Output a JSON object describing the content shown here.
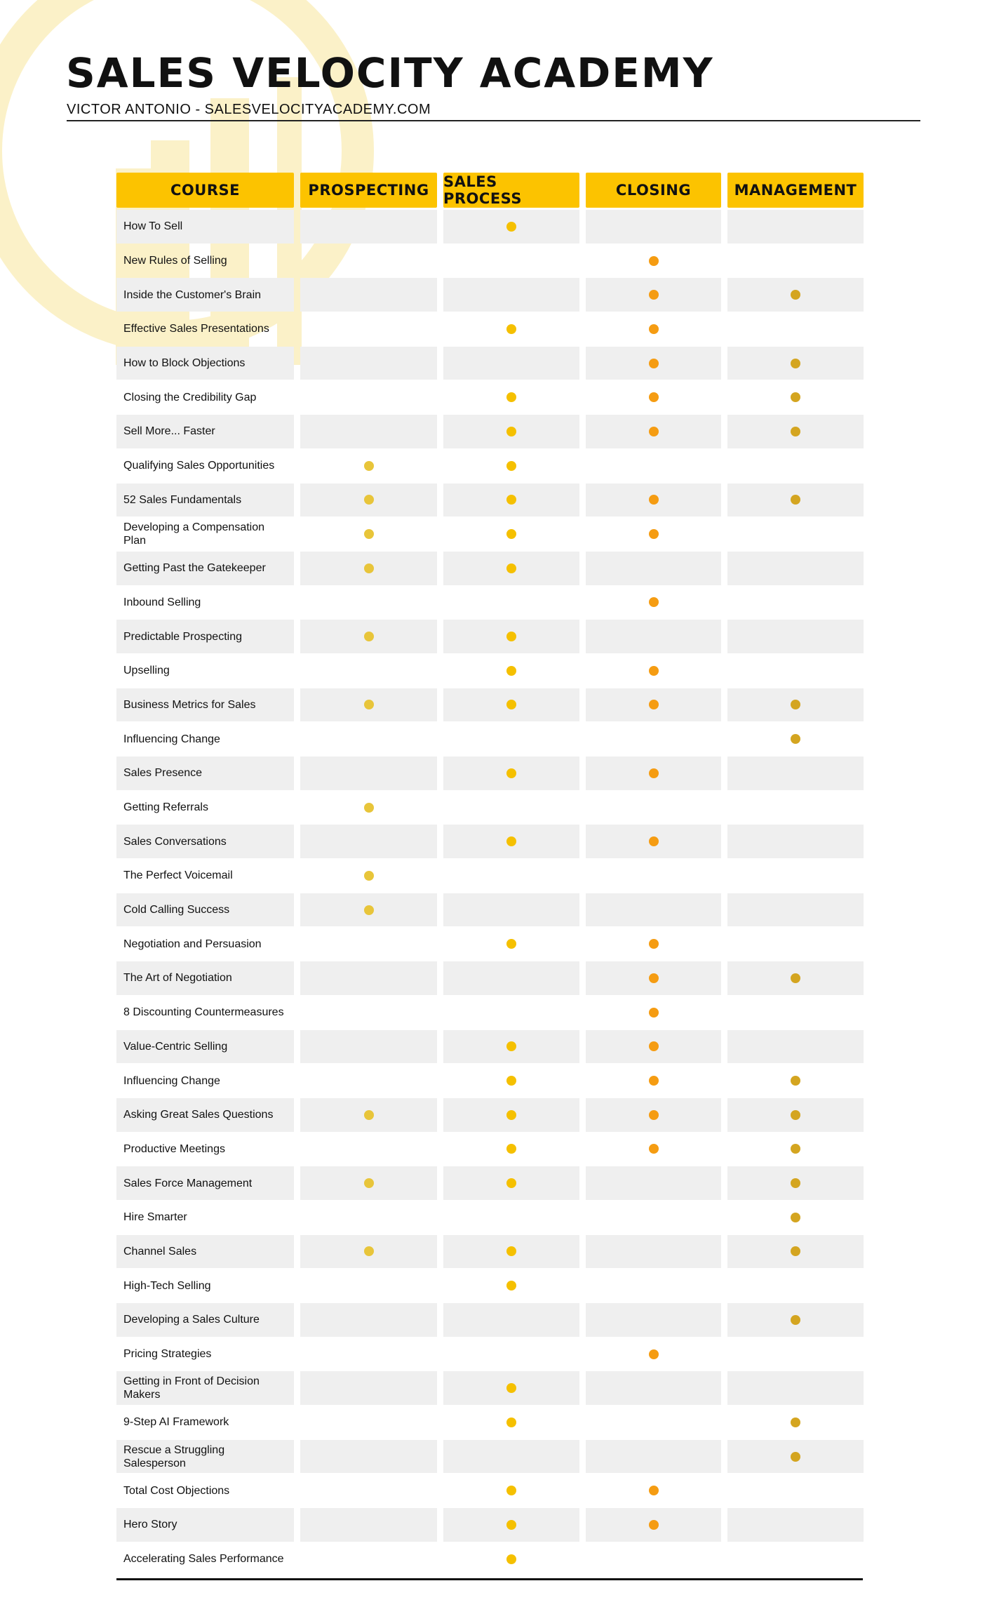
{
  "header": {
    "title": "SALES VELOCITY ACADEMY",
    "subtitle": "VICTOR ANTONIO - SALESVELOCITYACADEMY.COM"
  },
  "table": {
    "columns": [
      "COURSE",
      "PROSPECTING",
      "SALES PROCESS",
      "CLOSING",
      "MANAGEMENT"
    ],
    "header_color": "#fcc300",
    "dot_colors": [
      "#e8c53a",
      "#f5c000",
      "#f59c12",
      "#d4a520"
    ],
    "courses": [
      {
        "name": "How To Sell",
        "marks": [
          false,
          true,
          false,
          false
        ]
      },
      {
        "name": "New Rules of Selling",
        "marks": [
          false,
          false,
          true,
          false
        ]
      },
      {
        "name": "Inside the Customer's Brain",
        "marks": [
          false,
          false,
          true,
          true
        ]
      },
      {
        "name": "Effective Sales Presentations",
        "marks": [
          false,
          true,
          true,
          false
        ]
      },
      {
        "name": "How to Block Objections",
        "marks": [
          false,
          false,
          true,
          true
        ]
      },
      {
        "name": "Closing the Credibility Gap",
        "marks": [
          false,
          true,
          true,
          true
        ]
      },
      {
        "name": "Sell More... Faster",
        "marks": [
          false,
          true,
          true,
          true
        ]
      },
      {
        "name": "Qualifying Sales Opportunities",
        "marks": [
          true,
          true,
          false,
          false
        ]
      },
      {
        "name": "52 Sales Fundamentals",
        "marks": [
          true,
          true,
          true,
          true
        ]
      },
      {
        "name": "Developing a Compensation Plan",
        "marks": [
          true,
          true,
          true,
          false
        ]
      },
      {
        "name": "Getting Past the Gatekeeper",
        "marks": [
          true,
          true,
          false,
          false
        ]
      },
      {
        "name": "Inbound Selling",
        "marks": [
          false,
          false,
          true,
          false
        ]
      },
      {
        "name": "Predictable Prospecting",
        "marks": [
          true,
          true,
          false,
          false
        ]
      },
      {
        "name": "Upselling",
        "marks": [
          false,
          true,
          true,
          false
        ]
      },
      {
        "name": "Business Metrics for Sales",
        "marks": [
          true,
          true,
          true,
          true
        ]
      },
      {
        "name": "Influencing Change",
        "marks": [
          false,
          false,
          false,
          true
        ]
      },
      {
        "name": "Sales Presence",
        "marks": [
          false,
          true,
          true,
          false
        ]
      },
      {
        "name": "Getting Referrals",
        "marks": [
          true,
          false,
          false,
          false
        ]
      },
      {
        "name": "Sales Conversations",
        "marks": [
          false,
          true,
          true,
          false
        ]
      },
      {
        "name": "The Perfect Voicemail",
        "marks": [
          true,
          false,
          false,
          false
        ]
      },
      {
        "name": "Cold Calling Success",
        "marks": [
          true,
          false,
          false,
          false
        ]
      },
      {
        "name": "Negotiation and Persuasion",
        "marks": [
          false,
          true,
          true,
          false
        ]
      },
      {
        "name": "The Art of Negotiation",
        "marks": [
          false,
          false,
          true,
          true
        ]
      },
      {
        "name": "8 Discounting Countermeasures",
        "marks": [
          false,
          false,
          true,
          false
        ]
      },
      {
        "name": "Value-Centric Selling",
        "marks": [
          false,
          true,
          true,
          false
        ]
      },
      {
        "name": "Influencing Change",
        "marks": [
          false,
          true,
          true,
          true
        ]
      },
      {
        "name": "Asking Great Sales Questions",
        "marks": [
          true,
          true,
          true,
          true
        ]
      },
      {
        "name": "Productive Meetings",
        "marks": [
          false,
          true,
          true,
          true
        ]
      },
      {
        "name": "Sales Force Management",
        "marks": [
          true,
          true,
          false,
          true
        ]
      },
      {
        "name": "Hire Smarter",
        "marks": [
          false,
          false,
          false,
          true
        ]
      },
      {
        "name": "Channel Sales",
        "marks": [
          true,
          true,
          false,
          true
        ]
      },
      {
        "name": "High-Tech Selling",
        "marks": [
          false,
          true,
          false,
          false
        ]
      },
      {
        "name": "Developing a Sales Culture",
        "marks": [
          false,
          false,
          false,
          true
        ]
      },
      {
        "name": "Pricing Strategies",
        "marks": [
          false,
          false,
          true,
          false
        ]
      },
      {
        "name": "Getting in Front of Decision Makers",
        "marks": [
          false,
          true,
          false,
          false
        ]
      },
      {
        "name": "9-Step AI Framework",
        "marks": [
          false,
          true,
          false,
          true
        ]
      },
      {
        "name": "Rescue a Struggling Salesperson",
        "marks": [
          false,
          false,
          false,
          true
        ]
      },
      {
        "name": "Total Cost Objections",
        "marks": [
          false,
          true,
          true,
          false
        ]
      },
      {
        "name": "Hero Story",
        "marks": [
          false,
          true,
          true,
          false
        ]
      },
      {
        "name": "Accelerating Sales Performance",
        "marks": [
          false,
          true,
          false,
          false
        ]
      }
    ]
  }
}
